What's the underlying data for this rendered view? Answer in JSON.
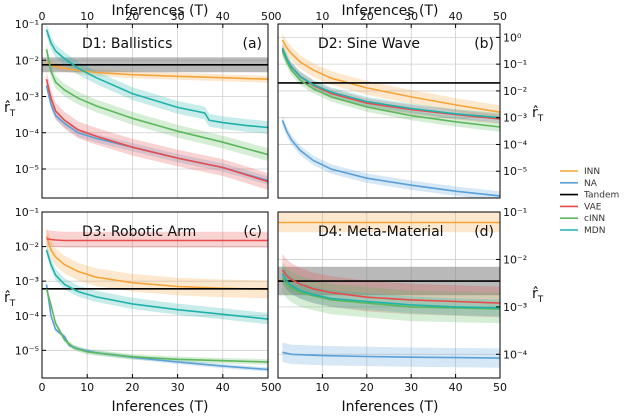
{
  "chart_data": {
    "type": "line",
    "top_axis_label": "Inferences (T)",
    "bottom_axis_label": "Inferences (T)",
    "y_label_main": "r̂",
    "y_label_sub": "T",
    "x_ticks": [
      0,
      10,
      20,
      30,
      40,
      50
    ],
    "xlim": [
      0,
      50
    ],
    "y_scale": "log",
    "grid": true,
    "legend": {
      "placement": "right",
      "entries": [
        {
          "name": "INN",
          "color": "#f5a43a"
        },
        {
          "name": "NA",
          "color": "#5aa0d8"
        },
        {
          "name": "Tandem",
          "color": "#000000"
        },
        {
          "name": "VAE",
          "color": "#e64c4c"
        },
        {
          "name": "cINN",
          "color": "#5cb85c"
        },
        {
          "name": "MDN",
          "color": "#20b2aa"
        }
      ]
    },
    "panels": [
      {
        "title": "D1: Ballistics",
        "letter": "(a)",
        "ylim_exp": [
          -5.8,
          -1
        ],
        "y_ticks": [
          {
            "exp": -1,
            "label": "10⁻¹"
          },
          {
            "exp": -2,
            "label": "10⁻²"
          },
          {
            "exp": -3,
            "label": "10⁻³"
          },
          {
            "exp": -4,
            "label": "10⁻⁴"
          },
          {
            "exp": -5,
            "label": "10⁻⁵"
          }
        ],
        "y_axis_side": "left",
        "series": [
          {
            "name": "INN",
            "x": [
              1,
              2,
              3,
              5,
              8,
              12,
              20,
              30,
              40,
              50
            ],
            "y": [
              0.009,
              0.0075,
              0.0068,
              0.006,
              0.0052,
              0.0046,
              0.004,
              0.0036,
              0.0033,
              0.003
            ],
            "band": [
              1.25,
              1.25
            ]
          },
          {
            "name": "NA",
            "x": [
              1,
              2,
              3,
              5,
              8,
              12,
              20,
              30,
              40,
              50
            ],
            "y": [
              0.002,
              0.0006,
              0.0003,
              0.00018,
              0.0001,
              7e-05,
              4e-05,
              2e-05,
              1.1e-05,
              4.8e-06
            ],
            "band": [
              1.3,
              1.3
            ]
          },
          {
            "name": "Tandem",
            "x": [
              0,
              50
            ],
            "y": [
              0.0075,
              0.0075
            ],
            "band": [
              1.6,
              1.6
            ]
          },
          {
            "name": "VAE",
            "x": [
              1,
              2,
              3,
              5,
              8,
              12,
              20,
              30,
              40,
              50
            ],
            "y": [
              0.003,
              0.0009,
              0.0004,
              0.00022,
              0.00012,
              8e-05,
              4e-05,
              2e-05,
              1.1e-05,
              4.5e-06
            ],
            "band": [
              1.7,
              1.7
            ]
          },
          {
            "name": "cINN",
            "x": [
              1,
              2,
              3,
              5,
              8,
              12,
              20,
              30,
              40,
              50
            ],
            "y": [
              0.02,
              0.005,
              0.0025,
              0.0015,
              0.0009,
              0.00055,
              0.00025,
              0.00011,
              5.5e-05,
              2.5e-05
            ],
            "band": [
              1.5,
              1.5
            ]
          },
          {
            "name": "MDN",
            "x": [
              1,
              2,
              3,
              5,
              8,
              12,
              20,
              30,
              36,
              37,
              40,
              45,
              50
            ],
            "y": [
              0.07,
              0.03,
              0.018,
              0.011,
              0.006,
              0.0033,
              0.0012,
              0.0005,
              0.00035,
              0.00022,
              0.00019,
              0.00016,
              0.00014
            ],
            "band": [
              1.5,
              1.5
            ]
          }
        ]
      },
      {
        "title": "D2: Sine Wave",
        "letter": "(b)",
        "ylim_exp": [
          -6,
          0.5
        ],
        "y_ticks": [
          {
            "exp": 0,
            "label": "10⁰"
          },
          {
            "exp": -1,
            "label": "10⁻¹"
          },
          {
            "exp": -2,
            "label": "10⁻²"
          },
          {
            "exp": -3,
            "label": "10⁻³"
          },
          {
            "exp": -4,
            "label": "10⁻⁴"
          },
          {
            "exp": -5,
            "label": "10⁻⁵"
          }
        ],
        "y_axis_side": "right",
        "series": [
          {
            "name": "INN",
            "x": [
              1,
              2,
              3,
              5,
              8,
              12,
              20,
              30,
              40,
              50
            ],
            "y": [
              0.8,
              0.4,
              0.25,
              0.12,
              0.06,
              0.03,
              0.013,
              0.006,
              0.003,
              0.0016
            ],
            "band": [
              1.8,
              1.8
            ]
          },
          {
            "name": "NA",
            "x": [
              1,
              2,
              3,
              5,
              8,
              12,
              20,
              30,
              40,
              50
            ],
            "y": [
              0.0008,
              0.0003,
              0.00015,
              6e-05,
              2.5e-05,
              1.2e-05,
              5.5e-06,
              3e-06,
              1.8e-06,
              1.2e-06
            ],
            "band": [
              1.5,
              1.5
            ]
          },
          {
            "name": "Tandem",
            "x": [
              0,
              50
            ],
            "y": [
              0.02,
              0.02
            ],
            "band": [
              1.0,
              1.0
            ]
          },
          {
            "name": "VAE",
            "x": [
              1,
              2,
              3,
              5,
              8,
              12,
              20,
              30,
              40,
              50
            ],
            "y": [
              0.35,
              0.15,
              0.08,
              0.035,
              0.016,
              0.008,
              0.0035,
              0.002,
              0.0013,
              0.0009
            ],
            "band": [
              1.5,
              1.5
            ]
          },
          {
            "name": "cINN",
            "x": [
              1,
              2,
              3,
              5,
              8,
              12,
              20,
              30,
              40,
              50
            ],
            "y": [
              0.3,
              0.12,
              0.06,
              0.025,
              0.012,
              0.006,
              0.0025,
              0.0012,
              0.0007,
              0.00045
            ],
            "band": [
              1.5,
              1.5
            ]
          },
          {
            "name": "MDN",
            "x": [
              1,
              2,
              3,
              5,
              8,
              12,
              20,
              30,
              40,
              50
            ],
            "y": [
              0.4,
              0.16,
              0.08,
              0.035,
              0.017,
              0.009,
              0.004,
              0.0022,
              0.0014,
              0.001
            ],
            "band": [
              1.5,
              1.5
            ]
          }
        ]
      },
      {
        "title": "D3: Robotic Arm",
        "letter": "(c)",
        "ylim_exp": [
          -5.8,
          -1
        ],
        "y_ticks": [
          {
            "exp": -1,
            "label": "10⁻¹"
          },
          {
            "exp": -2,
            "label": "10⁻²"
          },
          {
            "exp": -3,
            "label": "10⁻³"
          },
          {
            "exp": -4,
            "label": "10⁻⁴"
          },
          {
            "exp": -5,
            "label": "10⁻⁵"
          }
        ],
        "y_axis_side": "left",
        "series": [
          {
            "name": "INN",
            "x": [
              1,
              2,
              3,
              5,
              8,
              12,
              20,
              30,
              40,
              50
            ],
            "y": [
              0.02,
              0.008,
              0.005,
              0.003,
              0.0019,
              0.0013,
              0.0009,
              0.0007,
              0.00062,
              0.00058
            ],
            "band": [
              1.8,
              1.8
            ]
          },
          {
            "name": "NA",
            "x": [
              1,
              2,
              3,
              5,
              6,
              8,
              12,
              20,
              30,
              40,
              50
            ],
            "y": [
              0.0008,
              0.0001,
              4e-05,
              2.5e-05,
              1.4e-05,
              1.1e-05,
              8.5e-06,
              6.3e-06,
              4.6e-06,
              3.5e-06,
              2.8e-06
            ],
            "band": [
              1.15,
              1.15
            ]
          },
          {
            "name": "Tandem",
            "x": [
              0,
              50
            ],
            "y": [
              0.0006,
              0.0006
            ],
            "band": [
              1.0,
              1.0
            ]
          },
          {
            "name": "VAE",
            "x": [
              1,
              2,
              3,
              5,
              8,
              12,
              20,
              30,
              40,
              50
            ],
            "y": [
              0.017,
              0.016,
              0.0155,
              0.015,
              0.015,
              0.015,
              0.015,
              0.015,
              0.015,
              0.015
            ],
            "band": [
              1.8,
              1.6
            ]
          },
          {
            "name": "cINN",
            "x": [
              1,
              2,
              3,
              4,
              5,
              7,
              10,
              20,
              30,
              40,
              50
            ],
            "y": [
              0.0006,
              0.0002,
              6e-05,
              3.5e-05,
              2e-05,
              1.2e-05,
              9e-06,
              6.5e-06,
              5.5e-06,
              5e-06,
              4.6e-06
            ],
            "band": [
              1.2,
              1.2
            ]
          },
          {
            "name": "MDN",
            "x": [
              1,
              2,
              3,
              5,
              8,
              12,
              20,
              30,
              40,
              50
            ],
            "y": [
              0.008,
              0.003,
              0.0015,
              0.0008,
              0.0005,
              0.00035,
              0.00022,
              0.00015,
              0.00011,
              8e-05
            ],
            "band": [
              1.5,
              1.4
            ]
          }
        ]
      },
      {
        "title": "D4: Meta-Material",
        "letter": "(d)",
        "ylim_exp": [
          -4.5,
          -1
        ],
        "y_ticks": [
          {
            "exp": -1,
            "label": "10⁻¹"
          },
          {
            "exp": -2,
            "label": "10⁻²"
          },
          {
            "exp": -3,
            "label": "10⁻³"
          },
          {
            "exp": -4,
            "label": "10⁻⁴"
          }
        ],
        "y_axis_side": "right",
        "series": [
          {
            "name": "INN",
            "x": [
              0,
              50
            ],
            "y": [
              0.06,
              0.06
            ],
            "band": [
              1.6,
              1.6
            ]
          },
          {
            "name": "NA",
            "x": [
              1,
              3,
              5,
              10,
              20,
              30,
              40,
              50
            ],
            "y": [
              0.00011,
              0.0001,
              9.8e-05,
              9.4e-05,
              9e-05,
              8.7e-05,
              8.5e-05,
              8.3e-05
            ],
            "band": [
              1.6,
              1.6
            ]
          },
          {
            "name": "Tandem",
            "x": [
              0,
              50
            ],
            "y": [
              0.0035,
              0.0035
            ],
            "band": [
              2.0,
              2.0
            ]
          },
          {
            "name": "VAE",
            "x": [
              1,
              2,
              3,
              5,
              8,
              12,
              20,
              30,
              40,
              50
            ],
            "y": [
              0.006,
              0.0045,
              0.0038,
              0.003,
              0.0024,
              0.002,
              0.0016,
              0.0014,
              0.0013,
              0.0012
            ],
            "band": [
              2.2,
              2.0
            ]
          },
          {
            "name": "cINN",
            "x": [
              1,
              2,
              3,
              5,
              8,
              12,
              20,
              30,
              40,
              50
            ],
            "y": [
              0.004,
              0.003,
              0.0025,
              0.002,
              0.0017,
              0.0014,
              0.0012,
              0.001,
              0.00095,
              0.0009
            ],
            "band": [
              2.2,
              2.0
            ]
          },
          {
            "name": "MDN",
            "x": [
              1,
              2,
              3,
              5,
              8,
              12,
              20,
              30,
              40,
              50
            ],
            "y": [
              0.005,
              0.0035,
              0.0028,
              0.0022,
              0.0018,
              0.0015,
              0.0013,
              0.0011,
              0.001,
              0.00095
            ],
            "band": [
              1.5,
              1.5
            ]
          }
        ]
      }
    ]
  }
}
